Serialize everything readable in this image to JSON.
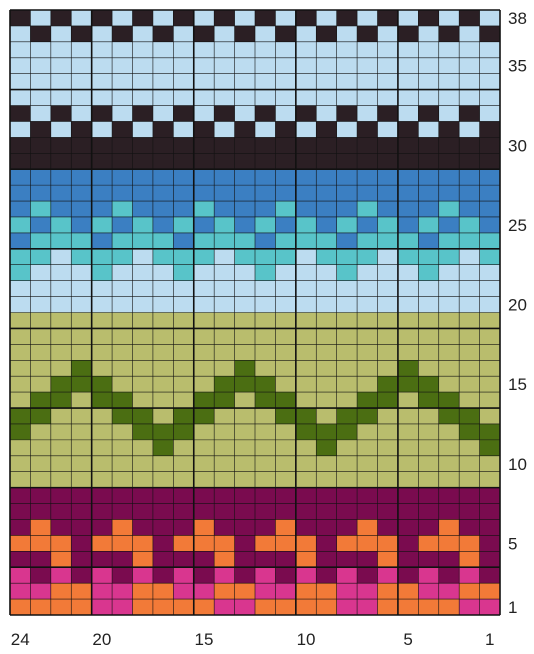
{
  "chart_data": {
    "type": "heatmap",
    "title": "",
    "columns": 24,
    "rows": 38,
    "grid": true,
    "row_labels": [
      "38",
      "35",
      "30",
      "25",
      "20",
      "15",
      "10",
      "5",
      "1"
    ],
    "row_label_rows": [
      38,
      35,
      30,
      25,
      20,
      15,
      10,
      5,
      1
    ],
    "column_labels": [
      "24",
      "20",
      "15",
      "10",
      "5",
      "1"
    ],
    "column_label_cols": [
      24,
      20,
      15,
      10,
      5,
      1
    ],
    "palette": {
      "K": "#2b1f24",
      "L": "#bcdcf0",
      "B": "#3b7fc2",
      "T": "#58c4c9",
      "G": "#b9bd6d",
      "D": "#4b6e12",
      "M": "#7a0b4f",
      "O": "#f27a38",
      "P": "#d9368f"
    },
    "pattern": [
      "KLKLKLKLKLKLKLKLKLKLKLKL",
      "LKLKLKLKLKLKLKLKLKLKLKLK",
      "LLLLLLLLLLLLLLLLLLLLLLLL",
      "LLLLLLLLLLLLLLLLLLLLLLLL",
      "LLLLLLLLLLLLLLLLLLLLLLLL",
      "LLLLLLLLLLLLLLLLLLLLLLLL",
      "KLKLKLKLKLKLKLKLKLKLKLKL",
      "LKLKLKLKLKLKLKLKLKLKLKLK",
      "KKKKKKKKKKKKKKKKKKKKKKKK",
      "KKKKKKKKKKKKKKKKKKKKKKKK",
      "BBBBBBBBBBBBBBBBBBBBBBBB",
      "BBBBBBBBBBBBBBBBBBBBBBBB",
      "BTBBBTBBBTBBBTBBBTBBBTBB",
      "TBTBTBTBTBTBTBTBTBTBTBTB",
      "BTTTBTTTBTTTBTTTBTTTBTTT",
      "TTLTTTLTTTLTTTLTTTLTTTLT",
      "TLLLTLLLTLLLTLLLTLLLTLLL",
      "LLLLLLLLLLLLLLLLLLLLLLLL",
      "LLLLLLLLLLLLLLLLLLLLLLLL",
      "GGGGGGGGGGGGGGGGGGGGGGGG",
      "GGGGGGGGGGGGGGGGGGGGGGGG",
      "GGGGGGGGGGGGGGGGGGGGGGGG",
      "GGGDGGGGGGGDGGGGGGGDGGGG",
      "GGDDDGGGGGDDDGGGGGDDDGGG",
      "GDDGDDGGGDDGDDGGGDDGDDGG",
      "DDGGGDDGDDGGGDDGDDGGGDDG",
      "DGGGGGDDDGGGGGDDDGGGGGDD",
      "GGGGGGGDGGGGGGGDGGGGGGGD",
      "GGGGGGGGGGGGGGGGGGGGGGGG",
      "GGGGGGGGGGGGGGGGGGGGGGGG",
      "MMMMMMMMMMMMMMMMMMMMMMMM",
      "MMMMMMMMMMMMMMMMMMMMMMMM",
      "MOMMMOMMMOMMMOMMMOMMMOMM",
      "OOOMOOOMOOOMOOOMOOOMOOOM",
      "MMOMMMOMMMOMMMOMMMOMMMOM",
      "PMPMPMPMPMPMPMPMPMPMPMPM",
      "PPOOPPOOPPOOPPOOPPOOPPOO",
      "OOOOPPOOOOPPOOOOPPOOOOPP"
    ]
  }
}
